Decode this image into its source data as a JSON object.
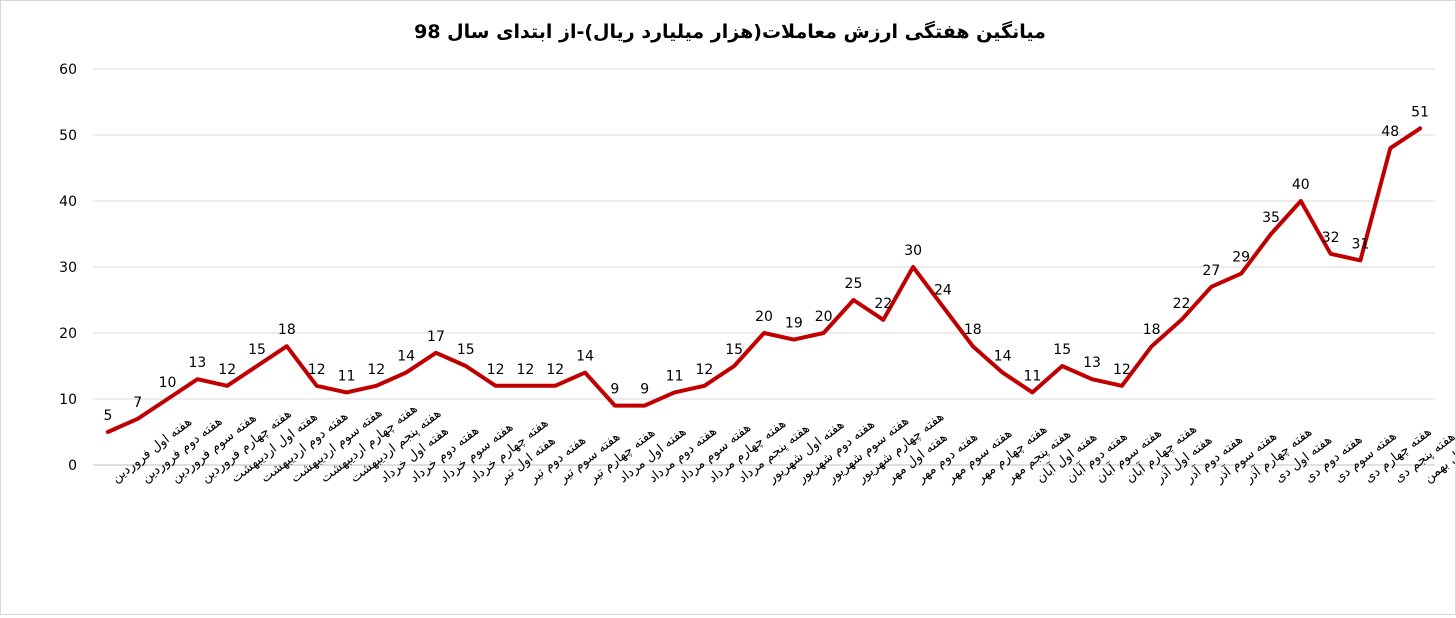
{
  "chart_data": {
    "type": "line",
    "title": "میانگین هفتگی ارزش معاملات(هزار میلیارد ریال)-از ابتدای سال 98",
    "ylim": [
      0,
      60
    ],
    "yticks": [
      0,
      10,
      20,
      30,
      40,
      50,
      60
    ],
    "grid": true,
    "legend": "none",
    "series_color": "#c00000",
    "categories": [
      "هفته اول فروردین",
      "هفته دوم فروردین",
      "هفته سوم فروردین",
      "هفته چهارم فروردین",
      "هفته اول اردیبهشت",
      "هفته دوم اردیبهشت",
      "هفته سوم اردیبهشت",
      "هفته چهارم اردیبهشت",
      "هفته پنجم اردیبهشت",
      "هفته اول خرداد",
      "هفته دوم خرداد",
      "هفته سوم خرداد",
      "هفته چهارم خرداد",
      "هفته اول تیر",
      "هفته دوم تیر",
      "هفته سوم تیر",
      "هفته چهارم تیر",
      "هفته اول مرداد",
      "هفته دوم مرداد",
      "هفته سوم مرداد",
      "هفته چهارم مرداد",
      "هفته پنجم مرداد",
      "هفته اول شهریور",
      "هفته دوم شهریور",
      "هفته سوم شهریور",
      "هفته چهارم شهریور",
      "هفته اول مهر",
      "هفته دوم مهر",
      "هفته سوم مهر",
      "هفته چهارم مهر",
      "هفته پنجم مهر",
      "هفته اول آبان",
      "هفته دوم آبان",
      "هفته سوم آبان",
      "هفته چهارم آبان",
      "هفته اول آذر",
      "هفته دوم آذر",
      "هفته سوم آذر",
      "هفته چهارم آذر",
      "هفته اول دی",
      "هفته دوم دی",
      "هفته سوم دی",
      "هفته چهارم دی",
      "هفته پنجم دی",
      "هفته اول بهمن"
    ],
    "values": [
      5,
      7,
      10,
      13,
      12,
      15,
      18,
      12,
      11,
      12,
      14,
      17,
      15,
      12,
      12,
      12,
      14,
      9,
      9,
      11,
      12,
      15,
      20,
      19,
      20,
      25,
      22,
      30,
      24,
      18,
      14,
      11,
      15,
      13,
      12,
      18,
      22,
      27,
      29,
      35,
      40,
      32,
      31,
      48,
      51
    ]
  }
}
